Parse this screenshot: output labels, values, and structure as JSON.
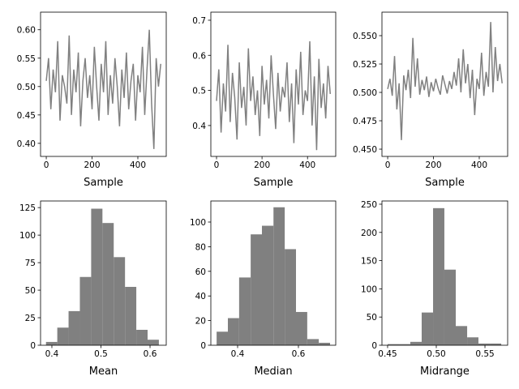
{
  "chart_data": [
    {
      "type": "line",
      "xlabel": "Sample",
      "color": "#808080",
      "x": [
        0,
        10,
        20,
        30,
        40,
        50,
        60,
        70,
        80,
        90,
        100,
        110,
        120,
        130,
        140,
        150,
        160,
        170,
        180,
        190,
        200,
        210,
        220,
        230,
        240,
        250,
        260,
        270,
        280,
        290,
        300,
        310,
        320,
        330,
        340,
        350,
        360,
        370,
        380,
        390,
        400,
        410,
        420,
        430,
        440,
        450,
        460,
        470,
        480,
        490,
        500
      ],
      "values": [
        0.51,
        0.55,
        0.46,
        0.53,
        0.49,
        0.58,
        0.44,
        0.52,
        0.5,
        0.47,
        0.59,
        0.45,
        0.53,
        0.49,
        0.56,
        0.43,
        0.51,
        0.55,
        0.48,
        0.52,
        0.46,
        0.57,
        0.5,
        0.44,
        0.54,
        0.49,
        0.58,
        0.45,
        0.52,
        0.47,
        0.55,
        0.5,
        0.43,
        0.53,
        0.48,
        0.56,
        0.46,
        0.51,
        0.54,
        0.44,
        0.52,
        0.49,
        0.57,
        0.45,
        0.53,
        0.6,
        0.47,
        0.39,
        0.55,
        0.5,
        0.54
      ],
      "xlim": [
        -25,
        524
      ],
      "xticks": [
        0,
        200,
        400
      ],
      "ylim": [
        0.377,
        0.631
      ],
      "yticks": [
        {
          "value": 0.4,
          "label": "0.40"
        },
        0.45,
        {
          "value": 0.5,
          "label": "0.50"
        },
        0.55,
        {
          "value": 0.6,
          "label": "0.60"
        }
      ]
    },
    {
      "type": "line",
      "xlabel": "Sample",
      "color": "#808080",
      "x": [
        0,
        10,
        20,
        30,
        40,
        50,
        60,
        70,
        80,
        90,
        100,
        110,
        120,
        130,
        140,
        150,
        160,
        170,
        180,
        190,
        200,
        210,
        220,
        230,
        240,
        250,
        260,
        270,
        280,
        290,
        300,
        310,
        320,
        330,
        340,
        350,
        360,
        370,
        380,
        390,
        400,
        410,
        420,
        430,
        440,
        450,
        460,
        470,
        480,
        490,
        500
      ],
      "values": [
        0.47,
        0.56,
        0.38,
        0.52,
        0.44,
        0.63,
        0.41,
        0.55,
        0.48,
        0.36,
        0.58,
        0.45,
        0.51,
        0.4,
        0.62,
        0.47,
        0.54,
        0.43,
        0.5,
        0.37,
        0.57,
        0.46,
        0.53,
        0.42,
        0.6,
        0.49,
        0.39,
        0.55,
        0.44,
        0.51,
        0.48,
        0.58,
        0.41,
        0.52,
        0.35,
        0.56,
        0.46,
        0.61,
        0.43,
        0.5,
        0.47,
        0.64,
        0.4,
        0.54,
        0.33,
        0.59,
        0.45,
        0.52,
        0.42,
        0.57,
        0.49
      ],
      "xlim": [
        -25,
        524
      ],
      "xticks": [
        0,
        200,
        400
      ],
      "ylim": [
        0.312,
        0.723
      ],
      "yticks": [
        0.4,
        0.5,
        0.6,
        0.7
      ]
    },
    {
      "type": "line",
      "xlabel": "Sample",
      "color": "#808080",
      "x": [
        0,
        10,
        20,
        30,
        40,
        50,
        60,
        70,
        80,
        90,
        100,
        110,
        120,
        130,
        140,
        150,
        160,
        170,
        180,
        190,
        200,
        210,
        220,
        230,
        240,
        250,
        260,
        270,
        280,
        290,
        300,
        310,
        320,
        330,
        340,
        350,
        360,
        370,
        380,
        390,
        400,
        410,
        420,
        430,
        440,
        450,
        460,
        470,
        480,
        490,
        500
      ],
      "values": [
        0.503,
        0.512,
        0.497,
        0.532,
        0.485,
        0.508,
        0.458,
        0.515,
        0.502,
        0.52,
        0.495,
        0.548,
        0.505,
        0.53,
        0.498,
        0.511,
        0.502,
        0.514,
        0.496,
        0.509,
        0.501,
        0.512,
        0.504,
        0.498,
        0.515,
        0.507,
        0.499,
        0.51,
        0.503,
        0.518,
        0.506,
        0.53,
        0.5,
        0.538,
        0.508,
        0.525,
        0.495,
        0.52,
        0.48,
        0.512,
        0.503,
        0.535,
        0.497,
        0.518,
        0.505,
        0.562,
        0.5,
        0.54,
        0.51,
        0.525,
        0.508
      ],
      "xlim": [
        -25,
        524
      ],
      "xticks": [
        0,
        200,
        400
      ],
      "ylim": [
        0.4436,
        0.5707
      ],
      "yticks": [
        {
          "value": 0.45,
          "label": "0.450"
        },
        0.475,
        {
          "value": 0.5,
          "label": "0.500"
        },
        0.525,
        {
          "value": 0.55,
          "label": "0.550"
        }
      ]
    },
    {
      "type": "histogram",
      "xlabel": "Mean",
      "color": "#808080",
      "bins": [
        0.388,
        0.411,
        0.434,
        0.457,
        0.48,
        0.503,
        0.526,
        0.549,
        0.572,
        0.595,
        0.618
      ],
      "values": [
        3,
        16,
        31,
        62,
        124,
        111,
        80,
        53,
        14,
        5
      ],
      "xlim": [
        0.3769,
        0.633
      ],
      "xticks": [
        0.4,
        0.5,
        0.6
      ],
      "ylim": [
        0,
        131
      ],
      "yticks": [
        0,
        25,
        50,
        75,
        100,
        125
      ]
    },
    {
      "type": "histogram",
      "xlabel": "Median",
      "color": "#808080",
      "bins": [
        0.331,
        0.368,
        0.405,
        0.443,
        0.48,
        0.518,
        0.555,
        0.592,
        0.629,
        0.667,
        0.704
      ],
      "values": [
        11,
        22,
        55,
        90,
        97,
        112,
        78,
        27,
        5,
        2
      ],
      "xlim": [
        0.312,
        0.7227
      ],
      "xticks": [
        0.4,
        0.6
      ],
      "ylim": [
        0,
        117.1
      ],
      "yticks": [
        0,
        20,
        40,
        60,
        80,
        100
      ]
    },
    {
      "type": "histogram",
      "xlabel": "Midrange",
      "color": "#808080",
      "bins": [
        0.45,
        0.4617,
        0.4733,
        0.485,
        0.4967,
        0.5083,
        0.52,
        0.5317,
        0.5433,
        0.555,
        0.5667
      ],
      "values": [
        2,
        2,
        6,
        58,
        243,
        134,
        34,
        14,
        3,
        3
      ],
      "xlim": [
        0.4442,
        0.5733
      ],
      "xticks": [
        0.45,
        {
          "value": 0.5,
          "label": "0.50"
        },
        0.55
      ],
      "ylim": [
        0,
        255.7
      ],
      "yticks": [
        0,
        50,
        100,
        150,
        200,
        250
      ]
    }
  ]
}
